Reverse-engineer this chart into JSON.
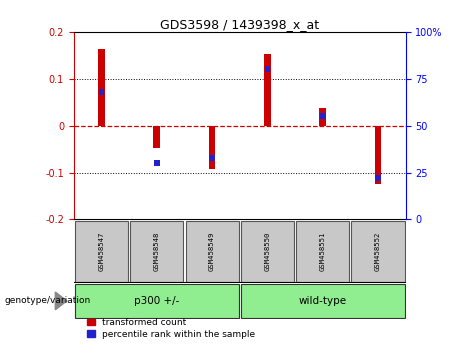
{
  "title": "GDS3598 / 1439398_x_at",
  "samples": [
    "GSM458547",
    "GSM458548",
    "GSM458549",
    "GSM458550",
    "GSM458551",
    "GSM458552"
  ],
  "red_values": [
    0.163,
    -0.048,
    -0.093,
    0.152,
    0.038,
    -0.125
  ],
  "blue_values_pct": [
    68,
    30,
    33,
    80,
    55,
    22
  ],
  "ylim_left": [
    -0.2,
    0.2
  ],
  "ylim_right": [
    0,
    100
  ],
  "yticks_left": [
    -0.2,
    -0.1,
    0,
    0.1,
    0.2
  ],
  "yticks_right": [
    0,
    25,
    50,
    75,
    100
  ],
  "bar_width": 0.12,
  "red_color": "#CC0000",
  "blue_color": "#2222CC",
  "zero_line_color": "#CC0000",
  "grid_color": "#000000",
  "label_bg": "#C8C8C8",
  "group1_label": "p300 +/-",
  "group2_label": "wild-type",
  "group_color": "#90EE90",
  "legend_items": [
    "transformed count",
    "percentile rank within the sample"
  ],
  "genotype_label": "genotype/variation"
}
